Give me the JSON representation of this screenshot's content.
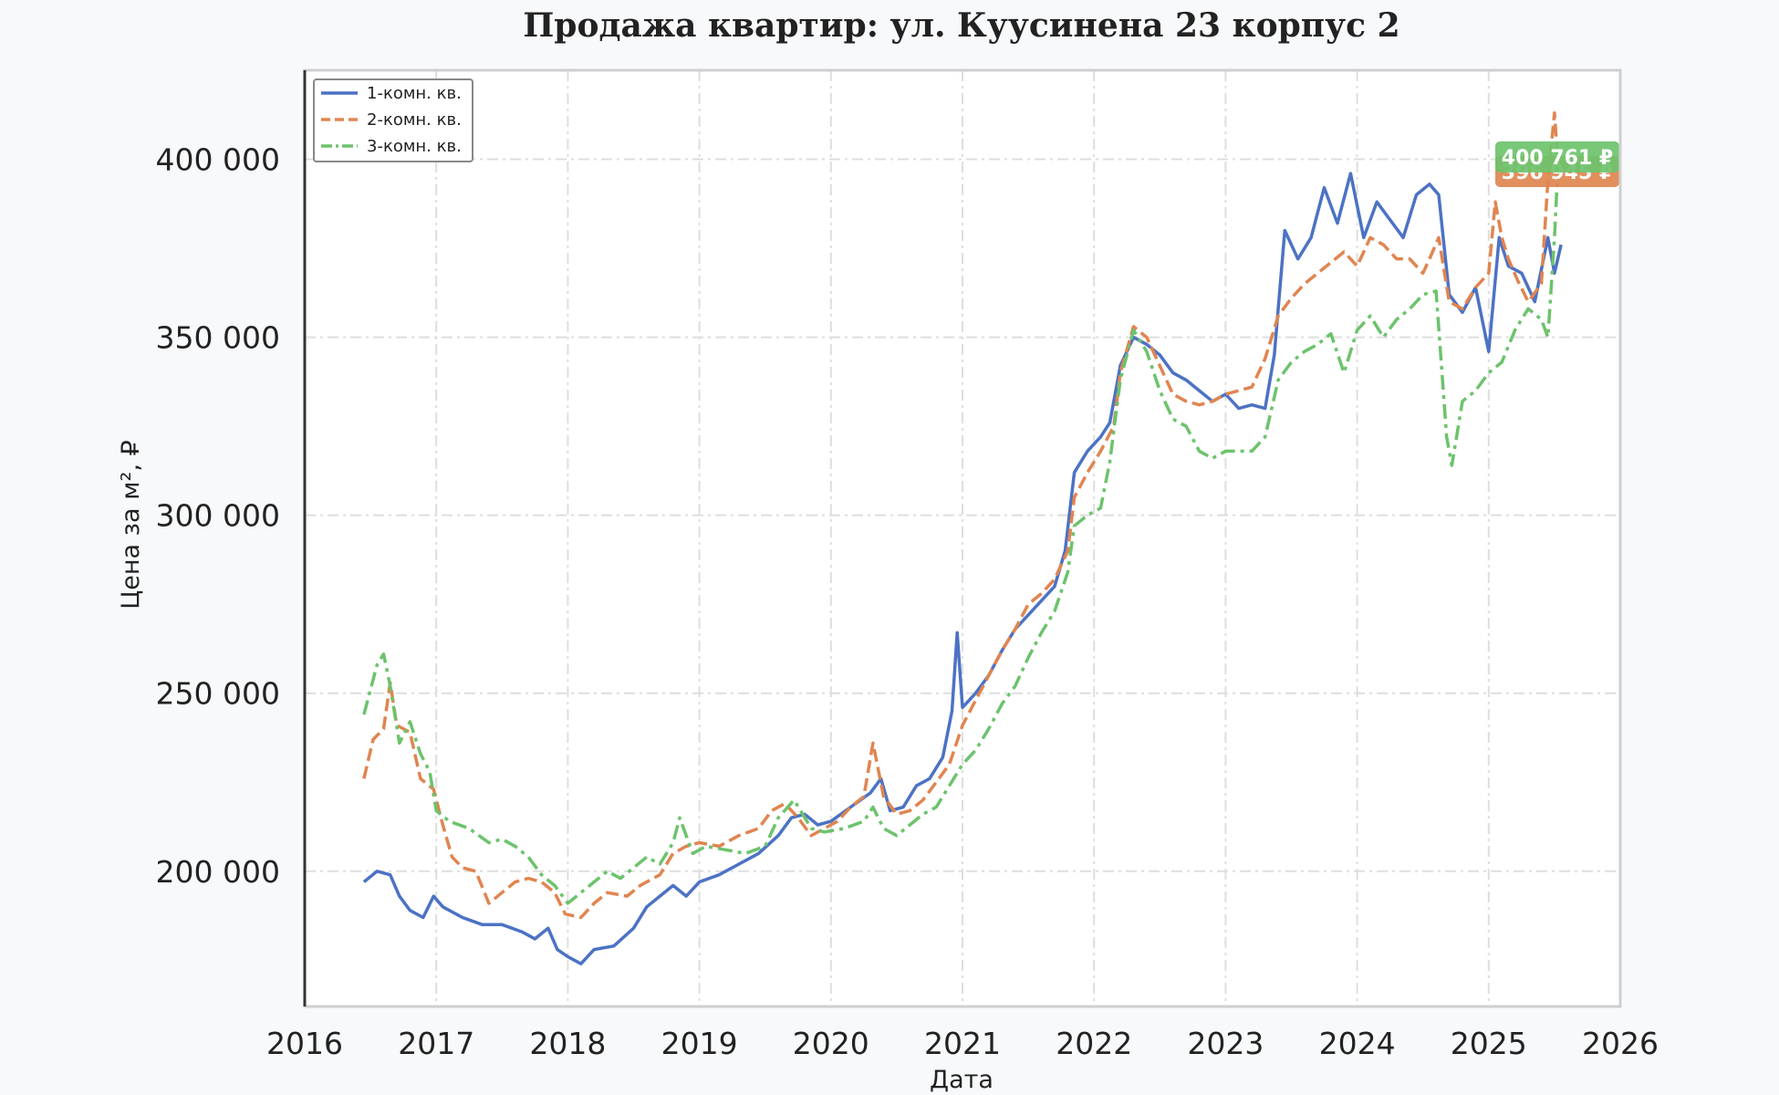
{
  "chart_data": {
    "type": "line",
    "title": "Продажа квартир: ул. Куусинена 23 корпус 2",
    "xlabel": "Дата",
    "ylabel": "Цена за м², ₽",
    "xlim": [
      2016,
      2026
    ],
    "ylim": [
      162000,
      425000
    ],
    "x_ticks": [
      2016,
      2017,
      2018,
      2019,
      2020,
      2021,
      2022,
      2023,
      2024,
      2025,
      2026
    ],
    "x_tick_labels": [
      "2016",
      "2017",
      "2018",
      "2019",
      "2020",
      "2021",
      "2022",
      "2023",
      "2024",
      "2025",
      "2026"
    ],
    "y_ticks": [
      200000,
      250000,
      300000,
      350000,
      400000
    ],
    "y_tick_labels": [
      "200 000",
      "250 000",
      "300 000",
      "350 000",
      "400 000"
    ],
    "grid": true,
    "legend_position": "top-left",
    "series": [
      {
        "name": "1-комн. кв.",
        "color": "#4c72c4",
        "style": "solid",
        "points": [
          [
            2016.45,
            197000
          ],
          [
            2016.55,
            200000
          ],
          [
            2016.65,
            199000
          ],
          [
            2016.72,
            193000
          ],
          [
            2016.8,
            189000
          ],
          [
            2016.9,
            187000
          ],
          [
            2016.98,
            193000
          ],
          [
            2017.05,
            190000
          ],
          [
            2017.2,
            187000
          ],
          [
            2017.35,
            185000
          ],
          [
            2017.5,
            185000
          ],
          [
            2017.65,
            183000
          ],
          [
            2017.75,
            181000
          ],
          [
            2017.85,
            184000
          ],
          [
            2017.92,
            178000
          ],
          [
            2018.0,
            176000
          ],
          [
            2018.1,
            174000
          ],
          [
            2018.2,
            178000
          ],
          [
            2018.35,
            179000
          ],
          [
            2018.5,
            184000
          ],
          [
            2018.6,
            190000
          ],
          [
            2018.7,
            193000
          ],
          [
            2018.8,
            196000
          ],
          [
            2018.9,
            193000
          ],
          [
            2019.0,
            197000
          ],
          [
            2019.15,
            199000
          ],
          [
            2019.3,
            202000
          ],
          [
            2019.45,
            205000
          ],
          [
            2019.6,
            210000
          ],
          [
            2019.7,
            215000
          ],
          [
            2019.8,
            216000
          ],
          [
            2019.9,
            213000
          ],
          [
            2020.0,
            214000
          ],
          [
            2020.15,
            218000
          ],
          [
            2020.3,
            222000
          ],
          [
            2020.38,
            226000
          ],
          [
            2020.45,
            217000
          ],
          [
            2020.55,
            218000
          ],
          [
            2020.65,
            224000
          ],
          [
            2020.75,
            226000
          ],
          [
            2020.85,
            232000
          ],
          [
            2020.92,
            245000
          ],
          [
            2020.96,
            267000
          ],
          [
            2021.0,
            246000
          ],
          [
            2021.1,
            250000
          ],
          [
            2021.2,
            255000
          ],
          [
            2021.3,
            262000
          ],
          [
            2021.4,
            268000
          ],
          [
            2021.5,
            272000
          ],
          [
            2021.6,
            276000
          ],
          [
            2021.7,
            280000
          ],
          [
            2021.78,
            290000
          ],
          [
            2021.85,
            312000
          ],
          [
            2021.95,
            318000
          ],
          [
            2022.05,
            322000
          ],
          [
            2022.12,
            326000
          ],
          [
            2022.2,
            342000
          ],
          [
            2022.3,
            350000
          ],
          [
            2022.4,
            348000
          ],
          [
            2022.5,
            345000
          ],
          [
            2022.6,
            340000
          ],
          [
            2022.7,
            338000
          ],
          [
            2022.8,
            335000
          ],
          [
            2022.9,
            332000
          ],
          [
            2023.0,
            334000
          ],
          [
            2023.1,
            330000
          ],
          [
            2023.2,
            331000
          ],
          [
            2023.3,
            330000
          ],
          [
            2023.37,
            345000
          ],
          [
            2023.45,
            380000
          ],
          [
            2023.55,
            372000
          ],
          [
            2023.65,
            378000
          ],
          [
            2023.75,
            392000
          ],
          [
            2023.85,
            382000
          ],
          [
            2023.95,
            396000
          ],
          [
            2024.05,
            378000
          ],
          [
            2024.15,
            388000
          ],
          [
            2024.25,
            383000
          ],
          [
            2024.35,
            378000
          ],
          [
            2024.45,
            390000
          ],
          [
            2024.55,
            393000
          ],
          [
            2024.62,
            390000
          ],
          [
            2024.7,
            362000
          ],
          [
            2024.8,
            357000
          ],
          [
            2024.9,
            364000
          ],
          [
            2025.0,
            346000
          ],
          [
            2025.08,
            378000
          ],
          [
            2025.15,
            370000
          ],
          [
            2025.25,
            368000
          ],
          [
            2025.35,
            360000
          ],
          [
            2025.45,
            378000
          ],
          [
            2025.5,
            368000
          ],
          [
            2025.55,
            376000
          ]
        ]
      },
      {
        "name": "2-комн. кв.",
        "color": "#e08550",
        "style": "dashed",
        "points": [
          [
            2016.45,
            226000
          ],
          [
            2016.52,
            237000
          ],
          [
            2016.6,
            240000
          ],
          [
            2016.65,
            253000
          ],
          [
            2016.7,
            241000
          ],
          [
            2016.8,
            239000
          ],
          [
            2016.88,
            226000
          ],
          [
            2016.98,
            223000
          ],
          [
            2017.05,
            213000
          ],
          [
            2017.12,
            204000
          ],
          [
            2017.2,
            201000
          ],
          [
            2017.3,
            200000
          ],
          [
            2017.4,
            191000
          ],
          [
            2017.5,
            194000
          ],
          [
            2017.6,
            197000
          ],
          [
            2017.7,
            198000
          ],
          [
            2017.8,
            197000
          ],
          [
            2017.9,
            194000
          ],
          [
            2017.98,
            188000
          ],
          [
            2018.1,
            187000
          ],
          [
            2018.2,
            191000
          ],
          [
            2018.3,
            194000
          ],
          [
            2018.45,
            193000
          ],
          [
            2018.55,
            196000
          ],
          [
            2018.7,
            199000
          ],
          [
            2018.8,
            205000
          ],
          [
            2018.9,
            207000
          ],
          [
            2019.0,
            208000
          ],
          [
            2019.15,
            207000
          ],
          [
            2019.3,
            210000
          ],
          [
            2019.45,
            212000
          ],
          [
            2019.55,
            217000
          ],
          [
            2019.65,
            219000
          ],
          [
            2019.75,
            215000
          ],
          [
            2019.85,
            210000
          ],
          [
            2019.95,
            212000
          ],
          [
            2020.05,
            214000
          ],
          [
            2020.15,
            218000
          ],
          [
            2020.25,
            221000
          ],
          [
            2020.32,
            236000
          ],
          [
            2020.4,
            221000
          ],
          [
            2020.5,
            216000
          ],
          [
            2020.6,
            217000
          ],
          [
            2020.7,
            220000
          ],
          [
            2020.8,
            225000
          ],
          [
            2020.9,
            230000
          ],
          [
            2021.0,
            241000
          ],
          [
            2021.1,
            248000
          ],
          [
            2021.2,
            255000
          ],
          [
            2021.3,
            262000
          ],
          [
            2021.4,
            268000
          ],
          [
            2021.5,
            275000
          ],
          [
            2021.6,
            278000
          ],
          [
            2021.7,
            282000
          ],
          [
            2021.8,
            290000
          ],
          [
            2021.85,
            305000
          ],
          [
            2021.95,
            312000
          ],
          [
            2022.05,
            318000
          ],
          [
            2022.15,
            325000
          ],
          [
            2022.2,
            340000
          ],
          [
            2022.3,
            353000
          ],
          [
            2022.4,
            350000
          ],
          [
            2022.5,
            342000
          ],
          [
            2022.6,
            334000
          ],
          [
            2022.7,
            332000
          ],
          [
            2022.8,
            331000
          ],
          [
            2022.9,
            332000
          ],
          [
            2023.0,
            334000
          ],
          [
            2023.1,
            335000
          ],
          [
            2023.2,
            336000
          ],
          [
            2023.3,
            344000
          ],
          [
            2023.4,
            356000
          ],
          [
            2023.5,
            361000
          ],
          [
            2023.6,
            365000
          ],
          [
            2023.7,
            368000
          ],
          [
            2023.8,
            371000
          ],
          [
            2023.9,
            374000
          ],
          [
            2024.0,
            370000
          ],
          [
            2024.1,
            378000
          ],
          [
            2024.2,
            376000
          ],
          [
            2024.3,
            372000
          ],
          [
            2024.4,
            372000
          ],
          [
            2024.5,
            368000
          ],
          [
            2024.55,
            372000
          ],
          [
            2024.62,
            378000
          ],
          [
            2024.7,
            360000
          ],
          [
            2024.8,
            358000
          ],
          [
            2024.9,
            364000
          ],
          [
            2025.0,
            368000
          ],
          [
            2025.05,
            388000
          ],
          [
            2025.1,
            378000
          ],
          [
            2025.15,
            372000
          ],
          [
            2025.22,
            366000
          ],
          [
            2025.3,
            360000
          ],
          [
            2025.4,
            365000
          ],
          [
            2025.45,
            394000
          ],
          [
            2025.5,
            413000
          ],
          [
            2025.53,
            397000
          ]
        ]
      },
      {
        "name": "3-комн. кв.",
        "color": "#6cc36c",
        "style": "dashdot",
        "points": [
          [
            2016.45,
            244000
          ],
          [
            2016.55,
            258000
          ],
          [
            2016.6,
            261000
          ],
          [
            2016.65,
            252000
          ],
          [
            2016.72,
            236000
          ],
          [
            2016.8,
            242000
          ],
          [
            2016.88,
            233000
          ],
          [
            2016.95,
            228000
          ],
          [
            2017.0,
            217000
          ],
          [
            2017.1,
            214000
          ],
          [
            2017.25,
            212000
          ],
          [
            2017.4,
            208000
          ],
          [
            2017.5,
            209000
          ],
          [
            2017.6,
            207000
          ],
          [
            2017.7,
            204000
          ],
          [
            2017.8,
            199000
          ],
          [
            2017.9,
            196000
          ],
          [
            2018.0,
            191000
          ],
          [
            2018.1,
            194000
          ],
          [
            2018.2,
            197000
          ],
          [
            2018.3,
            200000
          ],
          [
            2018.4,
            198000
          ],
          [
            2018.5,
            201000
          ],
          [
            2018.6,
            204000
          ],
          [
            2018.7,
            202000
          ],
          [
            2018.8,
            208000
          ],
          [
            2018.85,
            215000
          ],
          [
            2018.95,
            205000
          ],
          [
            2019.05,
            207000
          ],
          [
            2019.2,
            206000
          ],
          [
            2019.35,
            205000
          ],
          [
            2019.5,
            207000
          ],
          [
            2019.6,
            215000
          ],
          [
            2019.72,
            220000
          ],
          [
            2019.85,
            212000
          ],
          [
            2019.95,
            211000
          ],
          [
            2020.1,
            212000
          ],
          [
            2020.25,
            214000
          ],
          [
            2020.32,
            218000
          ],
          [
            2020.4,
            212000
          ],
          [
            2020.5,
            210000
          ],
          [
            2020.6,
            213000
          ],
          [
            2020.7,
            216000
          ],
          [
            2020.8,
            218000
          ],
          [
            2020.9,
            224000
          ],
          [
            2021.0,
            230000
          ],
          [
            2021.1,
            234000
          ],
          [
            2021.2,
            240000
          ],
          [
            2021.3,
            247000
          ],
          [
            2021.4,
            252000
          ],
          [
            2021.5,
            260000
          ],
          [
            2021.6,
            267000
          ],
          [
            2021.7,
            273000
          ],
          [
            2021.8,
            284000
          ],
          [
            2021.85,
            297000
          ],
          [
            2021.95,
            300000
          ],
          [
            2022.05,
            302000
          ],
          [
            2022.12,
            315000
          ],
          [
            2022.2,
            338000
          ],
          [
            2022.3,
            352000
          ],
          [
            2022.4,
            346000
          ],
          [
            2022.5,
            335000
          ],
          [
            2022.6,
            327000
          ],
          [
            2022.7,
            325000
          ],
          [
            2022.8,
            318000
          ],
          [
            2022.9,
            316000
          ],
          [
            2023.0,
            318000
          ],
          [
            2023.1,
            318000
          ],
          [
            2023.2,
            318000
          ],
          [
            2023.3,
            322000
          ],
          [
            2023.4,
            338000
          ],
          [
            2023.5,
            343000
          ],
          [
            2023.6,
            346000
          ],
          [
            2023.7,
            348000
          ],
          [
            2023.8,
            351000
          ],
          [
            2023.9,
            340000
          ],
          [
            2024.0,
            352000
          ],
          [
            2024.1,
            356000
          ],
          [
            2024.2,
            350000
          ],
          [
            2024.3,
            355000
          ],
          [
            2024.4,
            358000
          ],
          [
            2024.5,
            362000
          ],
          [
            2024.6,
            363000
          ],
          [
            2024.68,
            322000
          ],
          [
            2024.72,
            314000
          ],
          [
            2024.8,
            332000
          ],
          [
            2024.9,
            335000
          ],
          [
            2025.0,
            340000
          ],
          [
            2025.1,
            343000
          ],
          [
            2025.2,
            352000
          ],
          [
            2025.3,
            358000
          ],
          [
            2025.4,
            355000
          ],
          [
            2025.45,
            350000
          ],
          [
            2025.5,
            378000
          ],
          [
            2025.53,
            401000
          ]
        ]
      }
    ],
    "annotations": [
      {
        "text": "400 761 ₽",
        "color": "#6cc36c",
        "series": "3-комн. кв."
      },
      {
        "text": "396 945 ₽",
        "color": "#e08550",
        "series": "2-комн. кв."
      }
    ]
  }
}
